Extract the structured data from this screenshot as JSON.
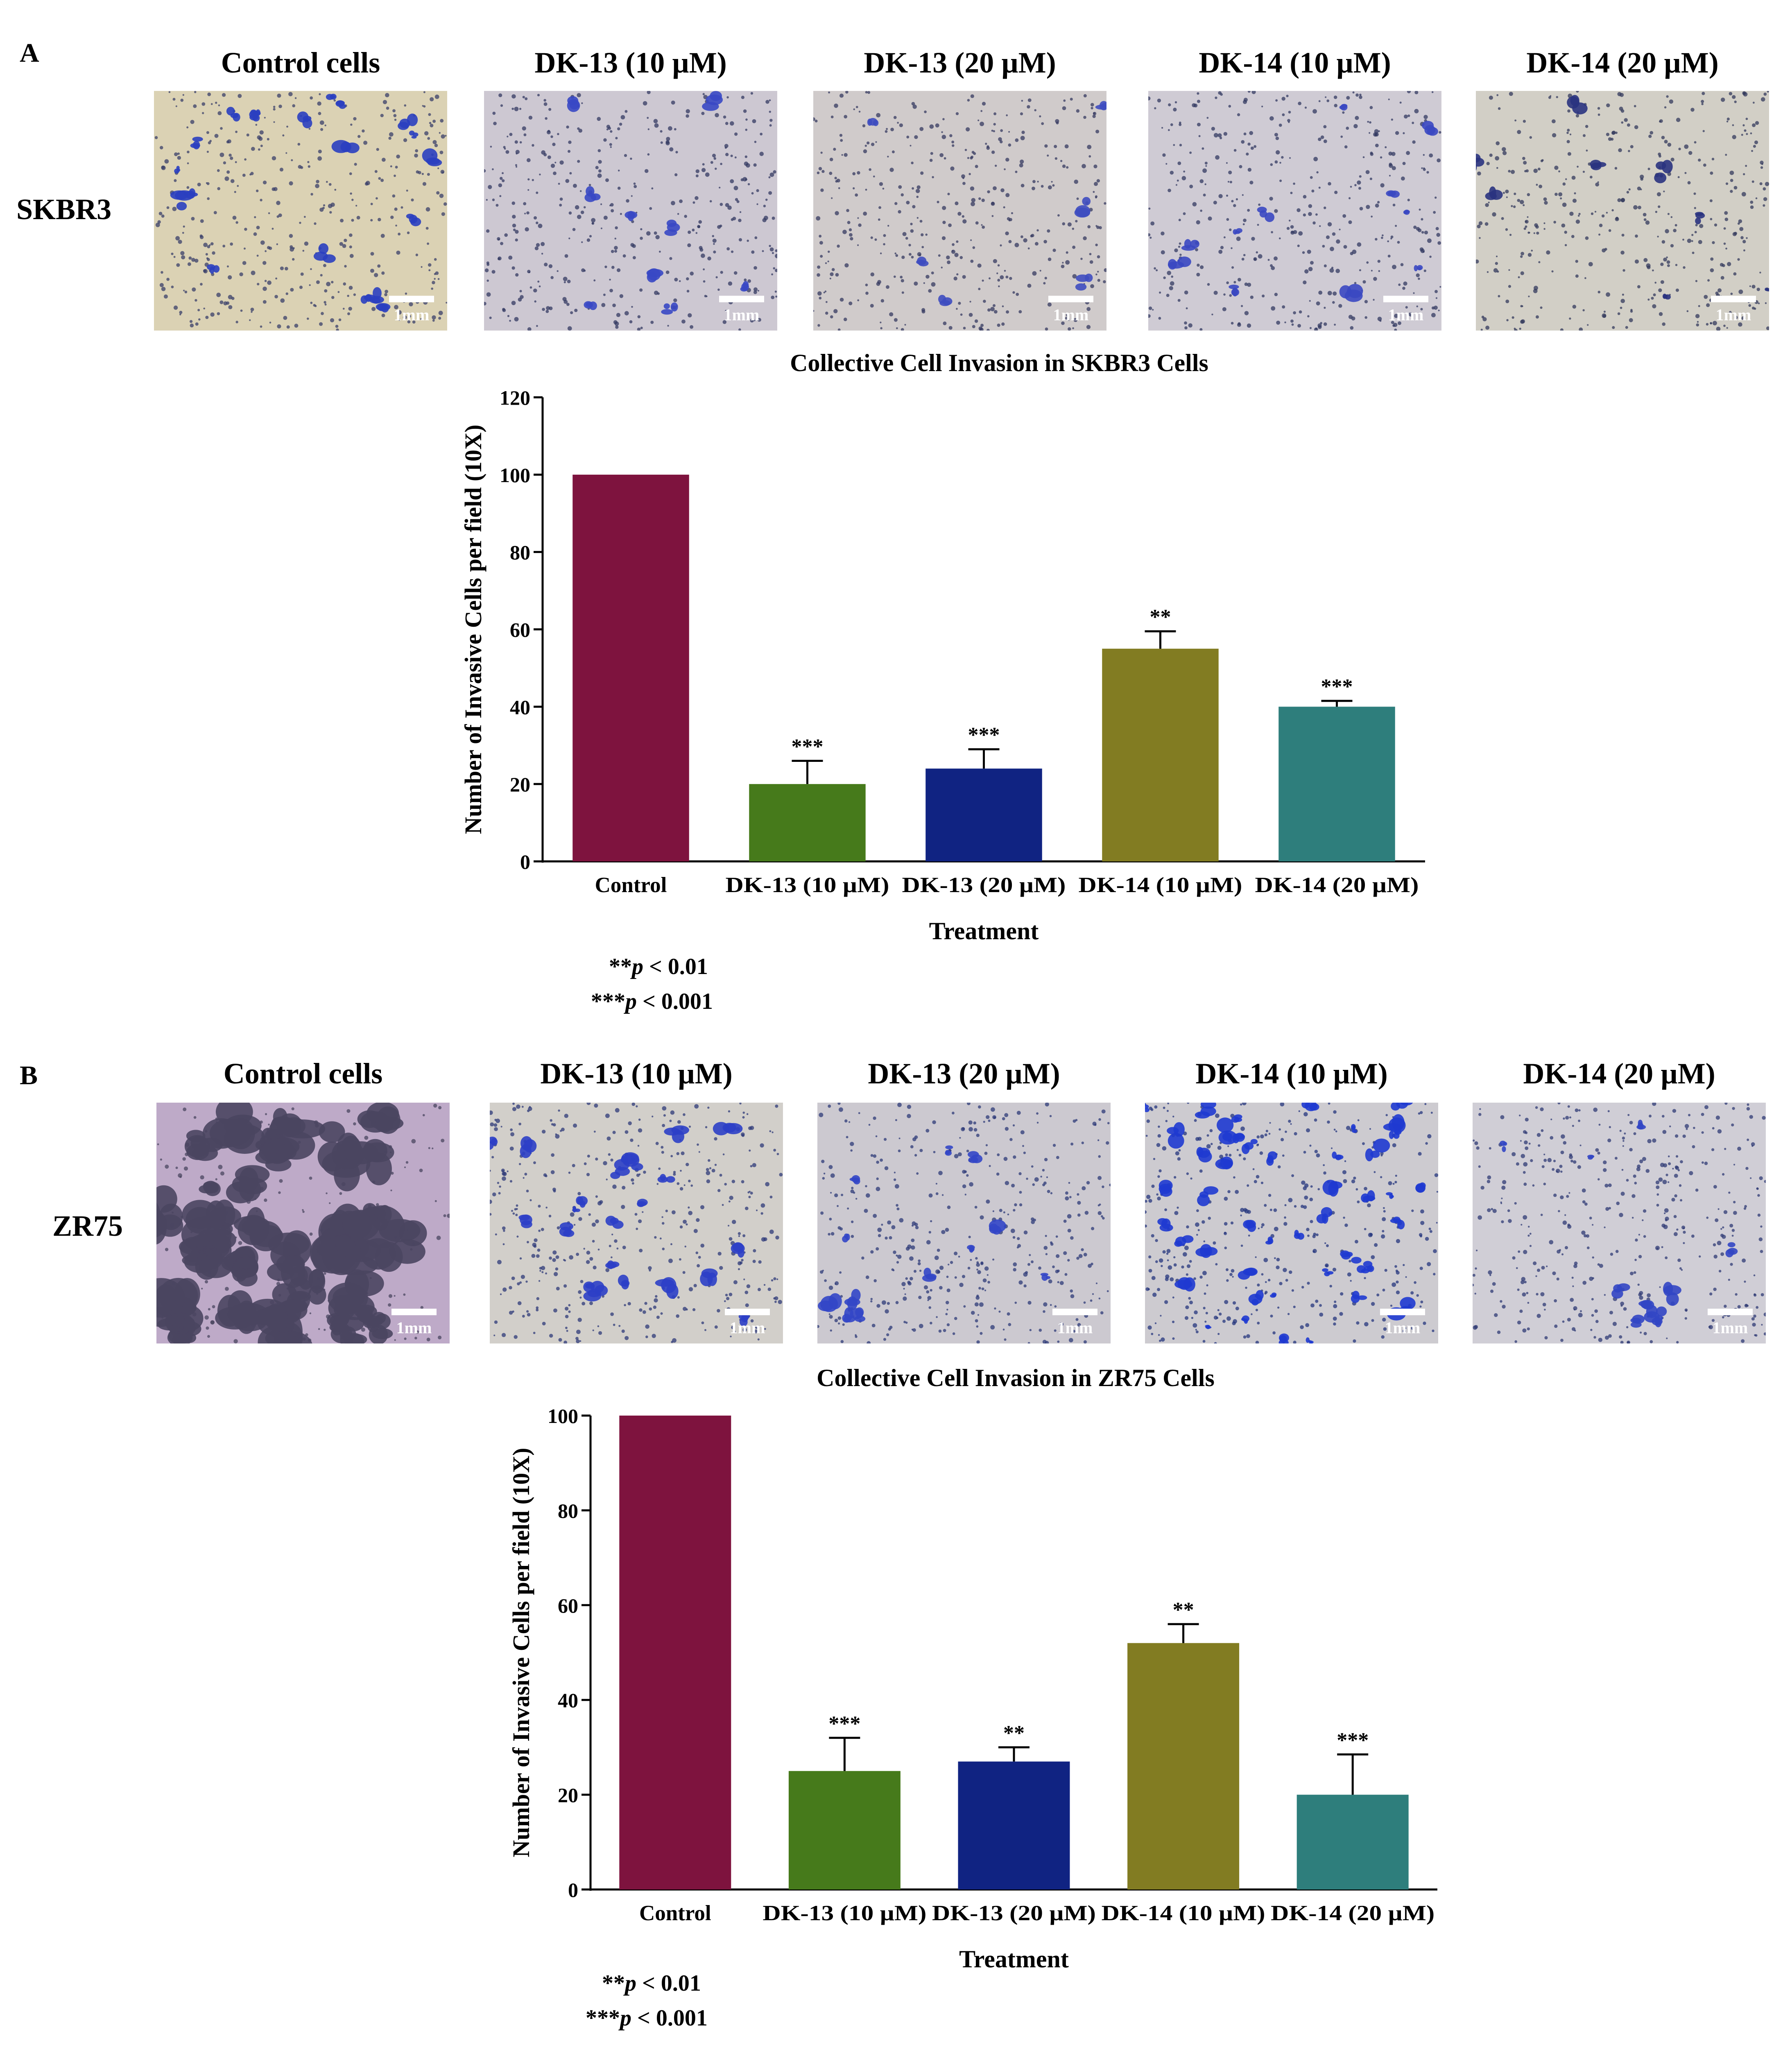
{
  "panels": [
    {
      "letter": "A",
      "cell_line": "SKBR3",
      "columns": [
        "Control cells",
        "DK-13 (10 µM)",
        "DK-13 (20 µM)",
        "DK-14 (10 µM)",
        "DK-14 (20 µM)"
      ],
      "scale_bar_label": "1mm",
      "micrograph_style": [
        {
          "bg": "#d8cfae",
          "cluster": "#2a3fc0",
          "dots": "#3a3f6a",
          "clusters": 20,
          "dense": false
        },
        {
          "bg": "#c9c4cf",
          "cluster": "#3848c4",
          "dots": "#333a62",
          "clusters": 9,
          "dense": false
        },
        {
          "bg": "#cdc7c7",
          "cluster": "#3e4cc0",
          "dots": "#353a60",
          "clusters": 6,
          "dense": false
        },
        {
          "bg": "#cbc7d1",
          "cluster": "#3a48c2",
          "dots": "#333a62",
          "clusters": 11,
          "dense": false
        },
        {
          "bg": "#cfcbc2",
          "cluster": "#2a3380",
          "dots": "#333a5c",
          "clusters": 8,
          "dense": false
        }
      ],
      "footnotes": [
        {
          "stars": "**",
          "p": "p",
          "rest": " < 0.01"
        },
        {
          "stars": "***",
          "p": "p",
          "rest": " < 0.001"
        }
      ],
      "chart_data": {
        "type": "bar",
        "title": "Collective Cell Invasion in SKBR3 Cells",
        "xlabel": "Treatment",
        "ylabel": "Number of Invasive Cells per field (10X)",
        "ylim": [
          0,
          120
        ],
        "yticks": [
          0,
          20,
          40,
          60,
          80,
          100,
          120
        ],
        "categories": [
          "Control",
          "DK-13 (10 µM)",
          "DK-13 (20 µM)",
          "DK-14 (10 µM)",
          "DK-14 (20 µM)"
        ],
        "values": [
          100,
          20,
          24,
          55,
          40
        ],
        "errors": [
          0,
          6,
          5,
          4.5,
          1.5
        ],
        "significance": [
          "",
          "***",
          "***",
          "**",
          "***"
        ],
        "colors": [
          "#7e133e",
          "#467a1b",
          "#102382",
          "#827c22",
          "#2e7e7c"
        ]
      }
    },
    {
      "letter": "B",
      "cell_line": "ZR75",
      "columns": [
        "Control cells",
        "DK-13 (10 µM)",
        "DK-13 (20 µM)",
        "DK-14 (10 µM)",
        "DK-14 (20 µM)"
      ],
      "scale_bar_label": "1mm",
      "micrograph_style": [
        {
          "bg": "#b9a3c4",
          "cluster": "#4a4560",
          "dots": "#4a4560",
          "clusters": 40,
          "dense": true
        },
        {
          "bg": "#cfcbc6",
          "cluster": "#2c3fc6",
          "dots": "#2e3a78",
          "clusters": 22,
          "dense": false
        },
        {
          "bg": "#c8c5cc",
          "cluster": "#3346c6",
          "dots": "#2e3a78",
          "clusters": 12,
          "dense": false
        },
        {
          "bg": "#c9c7cc",
          "cluster": "#1f3ad0",
          "dots": "#24357e",
          "clusters": 45,
          "dense": false
        },
        {
          "bg": "#cdcad3",
          "cluster": "#3246c4",
          "dots": "#2f3a74",
          "clusters": 10,
          "dense": false
        }
      ],
      "footnotes": [
        {
          "stars": "**",
          "p": "p",
          "rest": " < 0.01"
        },
        {
          "stars": "***",
          "p": "p",
          "rest": " < 0.001"
        }
      ],
      "chart_data": {
        "type": "bar",
        "title": "Collective Cell Invasion in ZR75 Cells",
        "xlabel": "Treatment",
        "ylabel": "Number of Invasive Cells per field (10X)",
        "ylim": [
          0,
          100
        ],
        "yticks": [
          0,
          20,
          40,
          60,
          80,
          100
        ],
        "categories": [
          "Control",
          "DK-13 (10 µM)",
          "DK-13 (20 µM)",
          "DK-14 (10 µM)",
          "DK-14 (20 µM)"
        ],
        "values": [
          100,
          25,
          27,
          52,
          20
        ],
        "errors": [
          0,
          7,
          3,
          4,
          8.5
        ],
        "significance": [
          "",
          "***",
          "**",
          "**",
          "***"
        ],
        "colors": [
          "#7e133e",
          "#467a1b",
          "#102382",
          "#827c22",
          "#2e7e7c"
        ]
      }
    }
  ]
}
